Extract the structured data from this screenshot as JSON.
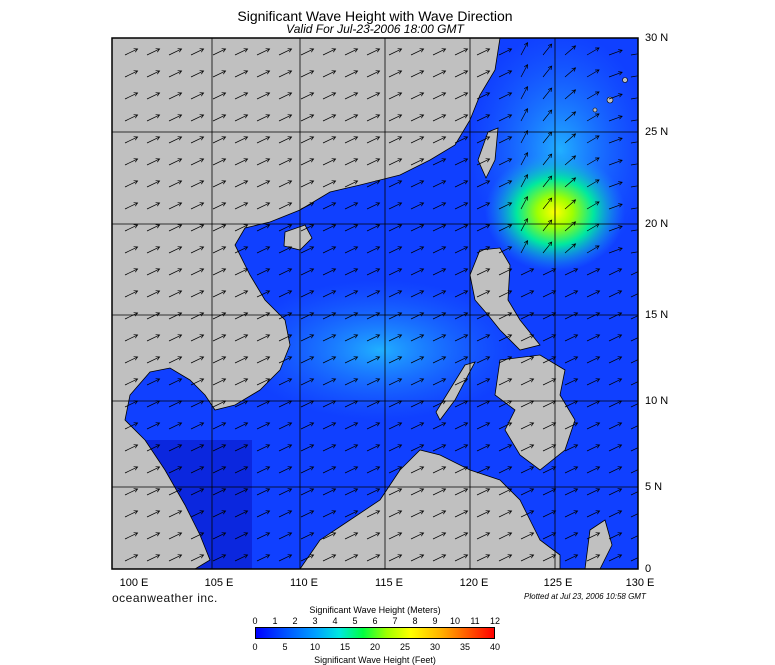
{
  "title": "Significant Wave Height with Wave Direction",
  "subtitle": "Valid For Jul-23-2006 18:00 GMT",
  "brand": "oceanweather inc.",
  "plotted": "Plotted at Jul 23, 2006 10:58 GMT",
  "lat_labels": [
    "30 N",
    "25 N",
    "20 N",
    "15 N",
    "10 N",
    "5 N",
    "0"
  ],
  "lon_labels": [
    "100 E",
    "105 E",
    "110 E",
    "115 E",
    "120 E",
    "125 E",
    "130 E"
  ],
  "legend": {
    "meters_title": "Significant Wave Height (Meters)",
    "feet_title": "Significant Wave Height (Feet)",
    "meters_ticks": [
      "0",
      "1",
      "2",
      "3",
      "4",
      "5",
      "6",
      "7",
      "8",
      "9",
      "10",
      "11",
      "12"
    ],
    "feet_ticks": [
      "0",
      "5",
      "10",
      "15",
      "20",
      "25",
      "30",
      "35",
      "40"
    ]
  },
  "colors": {
    "land": "#c0c0c0",
    "sea_low": "#0000ff",
    "sea_mid": "#1e90ff",
    "peak": "#ffff00"
  }
}
